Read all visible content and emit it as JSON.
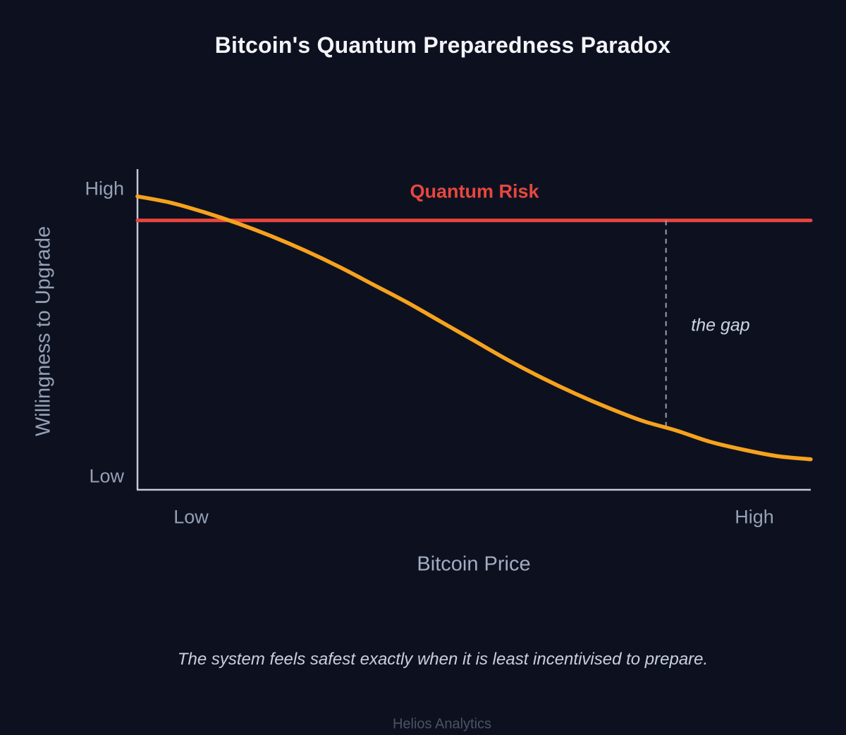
{
  "colors": {
    "background": "#0d111f",
    "curve_orange": "#f6a21e",
    "risk_red": "#e8463f",
    "axis": "#c6cad2",
    "dashed_gray": "#9aa0ad",
    "tick_text": "#96a0b5",
    "title_text": "#f2f4f8"
  },
  "chart_data": {
    "type": "line",
    "title": "Bitcoin's Quantum Preparedness Paradox",
    "xlabel": "Bitcoin Price",
    "ylabel": "Willingness to Upgrade",
    "x_ticks": [
      "Low",
      "High"
    ],
    "y_ticks": [
      "High",
      "Low"
    ],
    "xlim": [
      0,
      1
    ],
    "ylim": [
      0,
      1
    ],
    "grid": false,
    "legend": "none",
    "series": [
      {
        "name": "Willingness to Upgrade",
        "type": "line",
        "color": "#f6a21e",
        "x": [
          0,
          0.05,
          0.1,
          0.15,
          0.2,
          0.25,
          0.3,
          0.35,
          0.4,
          0.45,
          0.5,
          0.55,
          0.6,
          0.65,
          0.7,
          0.75,
          0.8,
          0.85,
          0.9,
          0.95,
          1
        ],
        "y": [
          0.915,
          0.895,
          0.865,
          0.83,
          0.79,
          0.745,
          0.695,
          0.64,
          0.585,
          0.525,
          0.465,
          0.405,
          0.35,
          0.3,
          0.255,
          0.215,
          0.185,
          0.15,
          0.125,
          0.105,
          0.095
        ]
      },
      {
        "name": "Quantum Risk",
        "type": "hline",
        "color": "#e8463f",
        "value": 0.84,
        "label": "Quantum Risk"
      }
    ],
    "annotations": [
      {
        "type": "vline-dashed",
        "label": "the gap",
        "x": 0.785,
        "from": 0.84,
        "to": 0.196,
        "color": "#9aa0ad"
      }
    ]
  },
  "caption": "The system feels safest exactly when it is least incentivised to prepare.",
  "footer": "Helios Analytics"
}
